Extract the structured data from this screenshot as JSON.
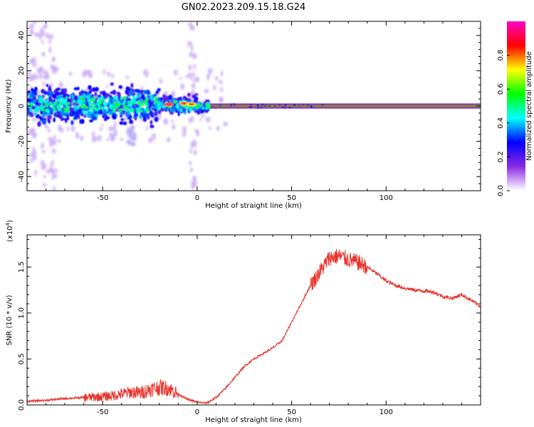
{
  "figure_title": "GN02.2023.209.15.18.G24",
  "chart_data": [
    {
      "type": "heatmap",
      "xlabel": "Height of straight line (km)",
      "ylabel": "Frequency (Hz)",
      "xlim": [
        -90,
        150
      ],
      "ylim": [
        -48,
        48
      ],
      "x_ticks": [
        -50,
        0,
        50,
        100
      ],
      "x_tick_labels": [
        "-50",
        "0",
        "50",
        "100"
      ],
      "y_ticks": [
        -40,
        -20,
        0,
        20,
        40
      ],
      "y_tick_labels": [
        "-40",
        "-20",
        "0",
        "20",
        "40"
      ],
      "colorbar": {
        "label": "Normalized spectral amplitude",
        "range": [
          0,
          1
        ],
        "ticks": [
          0.0,
          0.2,
          0.4,
          0.6,
          0.8
        ],
        "tick_labels": [
          "0.0",
          "0.2",
          "0.4",
          "0.6",
          "0.8"
        ],
        "colormap": [
          "#ffffff",
          "#8a2be2",
          "#0000ff",
          "#00ffff",
          "#00ff00",
          "#ffff00",
          "#ff0000",
          "#ff00c8"
        ]
      },
      "description_points": {
        "central_ridge_x_range": [
          -90,
          7
        ],
        "steady_line_x_range": [
          7,
          150
        ],
        "steady_line_freq": 0,
        "hot_spots": [
          {
            "x": -15,
            "y": 1,
            "amp": 0.95
          },
          {
            "x": -7,
            "y": 1.5,
            "amp": 0.9
          },
          {
            "x": -3,
            "y": 1,
            "amp": 0.85
          }
        ]
      },
      "grid": false
    },
    {
      "type": "line",
      "xlabel": "Height of straight line (km)",
      "ylabel": "SNR (10 * v/v)",
      "y_multiplier_label": "(x10",
      "y_multiplier_exp": "4",
      "xlim": [
        -90,
        150
      ],
      "ylim": [
        0,
        1.85
      ],
      "x_ticks": [
        -50,
        0,
        50,
        100
      ],
      "x_tick_labels": [
        "-50",
        "0",
        "50",
        "100"
      ],
      "y_ticks": [
        0,
        0.5,
        1.0,
        1.5
      ],
      "y_tick_labels": [
        "0.0",
        "0.5",
        "1.0",
        "1.5"
      ],
      "series": [
        {
          "color": "#e8322c",
          "x": [
            -90,
            -80,
            -70,
            -60,
            -50,
            -45,
            -40,
            -35,
            -30,
            -25,
            -20,
            -15,
            -10,
            -5,
            0,
            5,
            10,
            15,
            20,
            25,
            30,
            35,
            40,
            45,
            50,
            55,
            60,
            65,
            70,
            75,
            80,
            85,
            90,
            95,
            100,
            105,
            110,
            115,
            120,
            125,
            130,
            135,
            140,
            145,
            150
          ],
          "y": [
            0.04,
            0.05,
            0.07,
            0.08,
            0.09,
            0.1,
            0.12,
            0.14,
            0.13,
            0.17,
            0.19,
            0.18,
            0.12,
            0.06,
            0.03,
            0.02,
            0.08,
            0.18,
            0.3,
            0.42,
            0.5,
            0.56,
            0.62,
            0.7,
            0.9,
            1.1,
            1.3,
            1.45,
            1.6,
            1.62,
            1.58,
            1.55,
            1.5,
            1.43,
            1.35,
            1.3,
            1.27,
            1.25,
            1.24,
            1.23,
            1.18,
            1.16,
            1.2,
            1.14,
            1.07
          ]
        }
      ],
      "grid": false
    }
  ]
}
